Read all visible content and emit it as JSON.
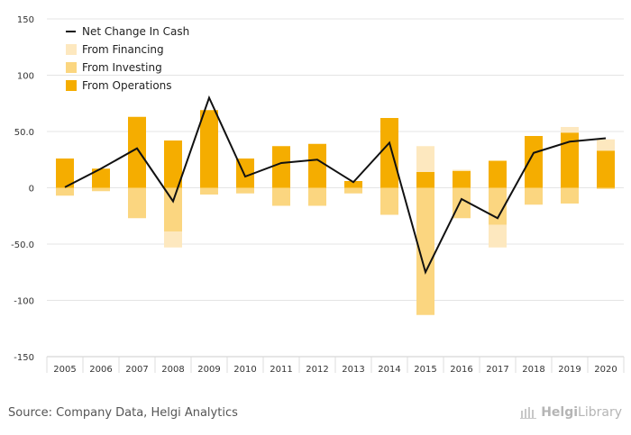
{
  "chart_data": {
    "type": "bar",
    "categories": [
      "2005",
      "2006",
      "2007",
      "2008",
      "2009",
      "2010",
      "2011",
      "2012",
      "2013",
      "2014",
      "2015",
      "2016",
      "2017",
      "2018",
      "2019",
      "2020"
    ],
    "series": [
      {
        "name": "From Operations",
        "kind": "bar",
        "color": "#f5ad00",
        "values": [
          26,
          17,
          63,
          42,
          69,
          26,
          37,
          39,
          6,
          62,
          14,
          15,
          24,
          46,
          49,
          33
        ]
      },
      {
        "name": "From Investing",
        "kind": "bar",
        "color": "#fbd680",
        "values": [
          -7,
          -3,
          -27,
          -39,
          -6,
          -5,
          -16,
          -16,
          -5,
          -24,
          -113,
          -27,
          -33,
          -15,
          -14,
          -1
        ]
      },
      {
        "name": "From Financing",
        "kind": "bar",
        "color": "#fde8bf",
        "values": [
          0,
          0,
          0,
          -14,
          0,
          0,
          0,
          0,
          0,
          0,
          23,
          1,
          -20,
          0,
          5,
          10
        ]
      },
      {
        "name": "Net Change In Cash",
        "kind": "line",
        "color": "#111111",
        "values": [
          0.5,
          17,
          35,
          -12,
          80,
          10,
          22,
          25,
          5,
          40,
          -75,
          -10,
          -27,
          31,
          41,
          44
        ]
      }
    ],
    "ylim": [
      -150,
      150
    ],
    "yticks": [
      150,
      100,
      50.0,
      0,
      -50.0,
      -100,
      -150
    ],
    "ytick_labels": [
      "150",
      "100",
      "50.0",
      "0",
      "-50.0",
      "-100",
      "-150"
    ],
    "grid": true,
    "legend_position": "top-left",
    "legend": [
      {
        "label": "Net Change In Cash",
        "marker": "line",
        "color": "#111111"
      },
      {
        "label": "From Financing",
        "marker": "square",
        "color": "#fde8bf"
      },
      {
        "label": "From Investing",
        "marker": "square",
        "color": "#fbd680"
      },
      {
        "label": "From Operations",
        "marker": "square",
        "color": "#f5ad00"
      }
    ]
  },
  "footer": {
    "source": "Source: Company Data, Helgi Analytics",
    "brand_main": "Helgi",
    "brand_sub": "Library"
  }
}
